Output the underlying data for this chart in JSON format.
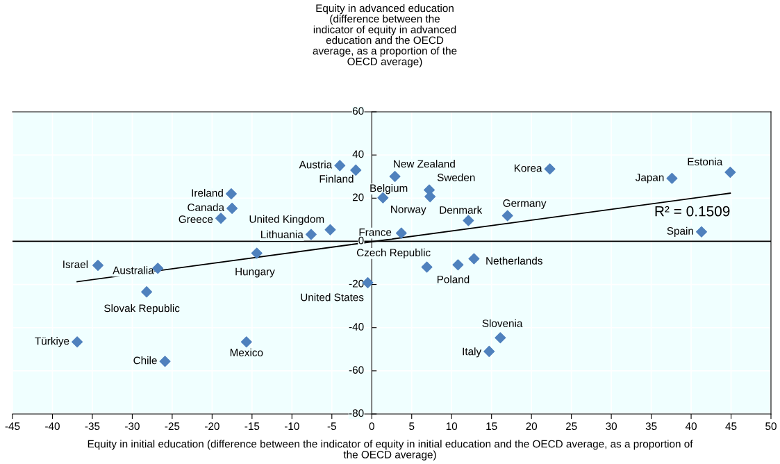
{
  "chart_data": {
    "type": "scatter",
    "ylabel": "Equity in advanced education\n(difference between the\nindicator of equity in advanced\neducation and the OECD\naverage, as a proportion of the\nOECD average)",
    "xlabel": "Equity in initial education (difference between the indicator of equity in initial education and the OECD average, as a proportion of\nthe OECD average)",
    "xlim": [
      -45,
      50
    ],
    "xticks": [
      -45,
      -40,
      -35,
      -30,
      -25,
      -20,
      -15,
      -10,
      -5,
      0,
      5,
      10,
      15,
      20,
      25,
      30,
      35,
      40,
      45,
      50
    ],
    "ylim": [
      -80,
      60
    ],
    "yticks": [
      -80,
      -60,
      -40,
      -20,
      0,
      20,
      40,
      60
    ],
    "grid": true,
    "marker": "diamond",
    "legend": false,
    "ref_lines": [
      {
        "axis": "y",
        "value": 0,
        "color": "#000000"
      }
    ],
    "series": [
      {
        "type": "scatter",
        "color": "#4f81bd",
        "x": [
          -4.0,
          -2.0,
          -17.6,
          -17.5,
          -18.9,
          -7.6,
          -5.2,
          -14.4,
          -34.3,
          -26.8,
          -28.2,
          -0.5,
          -36.9,
          -25.9,
          -15.7,
          2.9,
          1.4,
          7.2,
          7.3,
          3.7,
          12.1,
          17.0,
          22.3,
          37.6,
          44.9,
          41.3,
          6.9,
          10.8,
          12.8,
          16.1,
          14.7
        ],
        "values": [
          35.1,
          33.0,
          22.0,
          15.3,
          10.7,
          3.2,
          5.4,
          -5.5,
          -11.1,
          -12.5,
          -23.4,
          -19.2,
          -46.6,
          -55.6,
          -46.6,
          30.1,
          20.2,
          23.8,
          20.7,
          3.8,
          9.6,
          11.9,
          33.5,
          29.2,
          32.0,
          4.4,
          -11.9,
          -10.9,
          -8.1,
          -44.7,
          -51.0
        ]
      },
      {
        "type": "line",
        "marker": "none",
        "color": "#000000",
        "x": [
          -36.9,
          44.9
        ],
        "values": [
          -18.7,
          22.3
        ]
      }
    ],
    "annotations": [
      {
        "text": "Austria",
        "x": -4.0,
        "y": 35.1
      },
      {
        "text": "Finland",
        "x": -2.0,
        "y": 33.0
      },
      {
        "text": "Ireland",
        "x": -17.6,
        "y": 22.0
      },
      {
        "text": "Canada",
        "x": -17.5,
        "y": 15.3
      },
      {
        "text": "Greece",
        "x": -18.9,
        "y": 10.7
      },
      {
        "text": "Lithuania",
        "x": -7.6,
        "y": 3.2
      },
      {
        "text": "United Kingdom",
        "x": -5.2,
        "y": 5.4
      },
      {
        "text": "Hungary",
        "x": -14.4,
        "y": -5.5
      },
      {
        "text": "Israel",
        "x": -34.3,
        "y": -11.1
      },
      {
        "text": "Australia",
        "x": -26.8,
        "y": -12.5
      },
      {
        "text": "Slovak Republic",
        "x": -28.2,
        "y": -23.4
      },
      {
        "text": "United States",
        "x": -0.5,
        "y": -19.2
      },
      {
        "text": "Türkiye",
        "x": -36.9,
        "y": -46.6
      },
      {
        "text": "Chile",
        "x": -25.9,
        "y": -55.6
      },
      {
        "text": "Mexico",
        "x": -15.7,
        "y": -46.6
      },
      {
        "text": "New Zealand",
        "x": 2.9,
        "y": 30.1
      },
      {
        "text": "Belgium",
        "x": 1.4,
        "y": 20.2
      },
      {
        "text": "Sweden",
        "x": 7.2,
        "y": 23.8
      },
      {
        "text": "Norway",
        "x": 7.3,
        "y": 20.7
      },
      {
        "text": "France",
        "x": 3.7,
        "y": 3.8
      },
      {
        "text": "Denmark",
        "x": 12.1,
        "y": 9.6
      },
      {
        "text": "Germany",
        "x": 17.0,
        "y": 11.9
      },
      {
        "text": "Korea",
        "x": 22.3,
        "y": 33.5
      },
      {
        "text": "Japan",
        "x": 37.6,
        "y": 29.2
      },
      {
        "text": "Estonia",
        "x": 44.9,
        "y": 32.0
      },
      {
        "text": "Spain",
        "x": 41.3,
        "y": 4.4
      },
      {
        "text": "Czech Republic",
        "x": 6.9,
        "y": -11.9
      },
      {
        "text": "Poland",
        "x": 10.8,
        "y": -10.9
      },
      {
        "text": "Netherlands",
        "x": 12.8,
        "y": -8.1
      },
      {
        "text": "Slovenia",
        "x": 16.1,
        "y": -44.7
      },
      {
        "text": "Italy",
        "x": 14.7,
        "y": -51.0
      },
      {
        "text": "R² = 0.1509",
        "x": 44.9,
        "y": 22.3
      }
    ]
  }
}
